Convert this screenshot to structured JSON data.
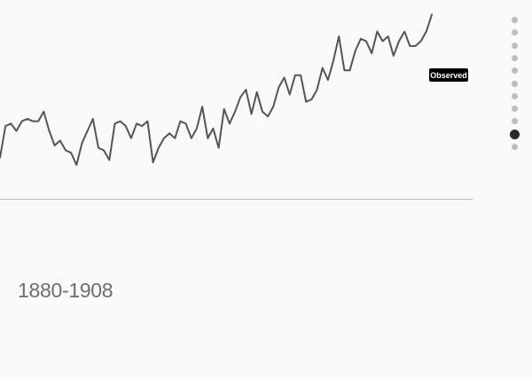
{
  "range_label": "1880-1908",
  "nav": {
    "count": 11,
    "active_index": 9
  },
  "colors": {
    "line": "#555555",
    "baseline": "#bbbbbb",
    "tag_bg": "#000000",
    "tag_text": "#ffffff",
    "dot": "#bdbdbd",
    "dot_active": "#2a2a2a"
  },
  "chart_data": {
    "type": "line",
    "series": [
      {
        "name": "Observed",
        "values": [
          0.05,
          0.18,
          0.19,
          0.16,
          0.2,
          0.21,
          0.2,
          0.2,
          0.24,
          0.16,
          0.1,
          0.12,
          0.08,
          0.07,
          0.02,
          0.11,
          0.16,
          0.21,
          0.09,
          0.08,
          0.04,
          0.19,
          0.2,
          0.18,
          0.13,
          0.19,
          0.18,
          0.2,
          0.03,
          0.09,
          0.13,
          0.15,
          0.13,
          0.2,
          0.19,
          0.13,
          0.17,
          0.26,
          0.13,
          0.17,
          0.09,
          0.25,
          0.19,
          0.24,
          0.3,
          0.33,
          0.23,
          0.32,
          0.24,
          0.22,
          0.26,
          0.34,
          0.38,
          0.31,
          0.39,
          0.39,
          0.28,
          0.29,
          0.33,
          0.42,
          0.37,
          0.45,
          0.55,
          0.41,
          0.41,
          0.49,
          0.54,
          0.53,
          0.48,
          0.57,
          0.53,
          0.55,
          0.47,
          0.53,
          0.57,
          0.51,
          0.51,
          0.53,
          0.57,
          0.64
        ]
      }
    ],
    "annotation": "Observed",
    "ylim": [
      -0.12,
      0.7
    ]
  }
}
